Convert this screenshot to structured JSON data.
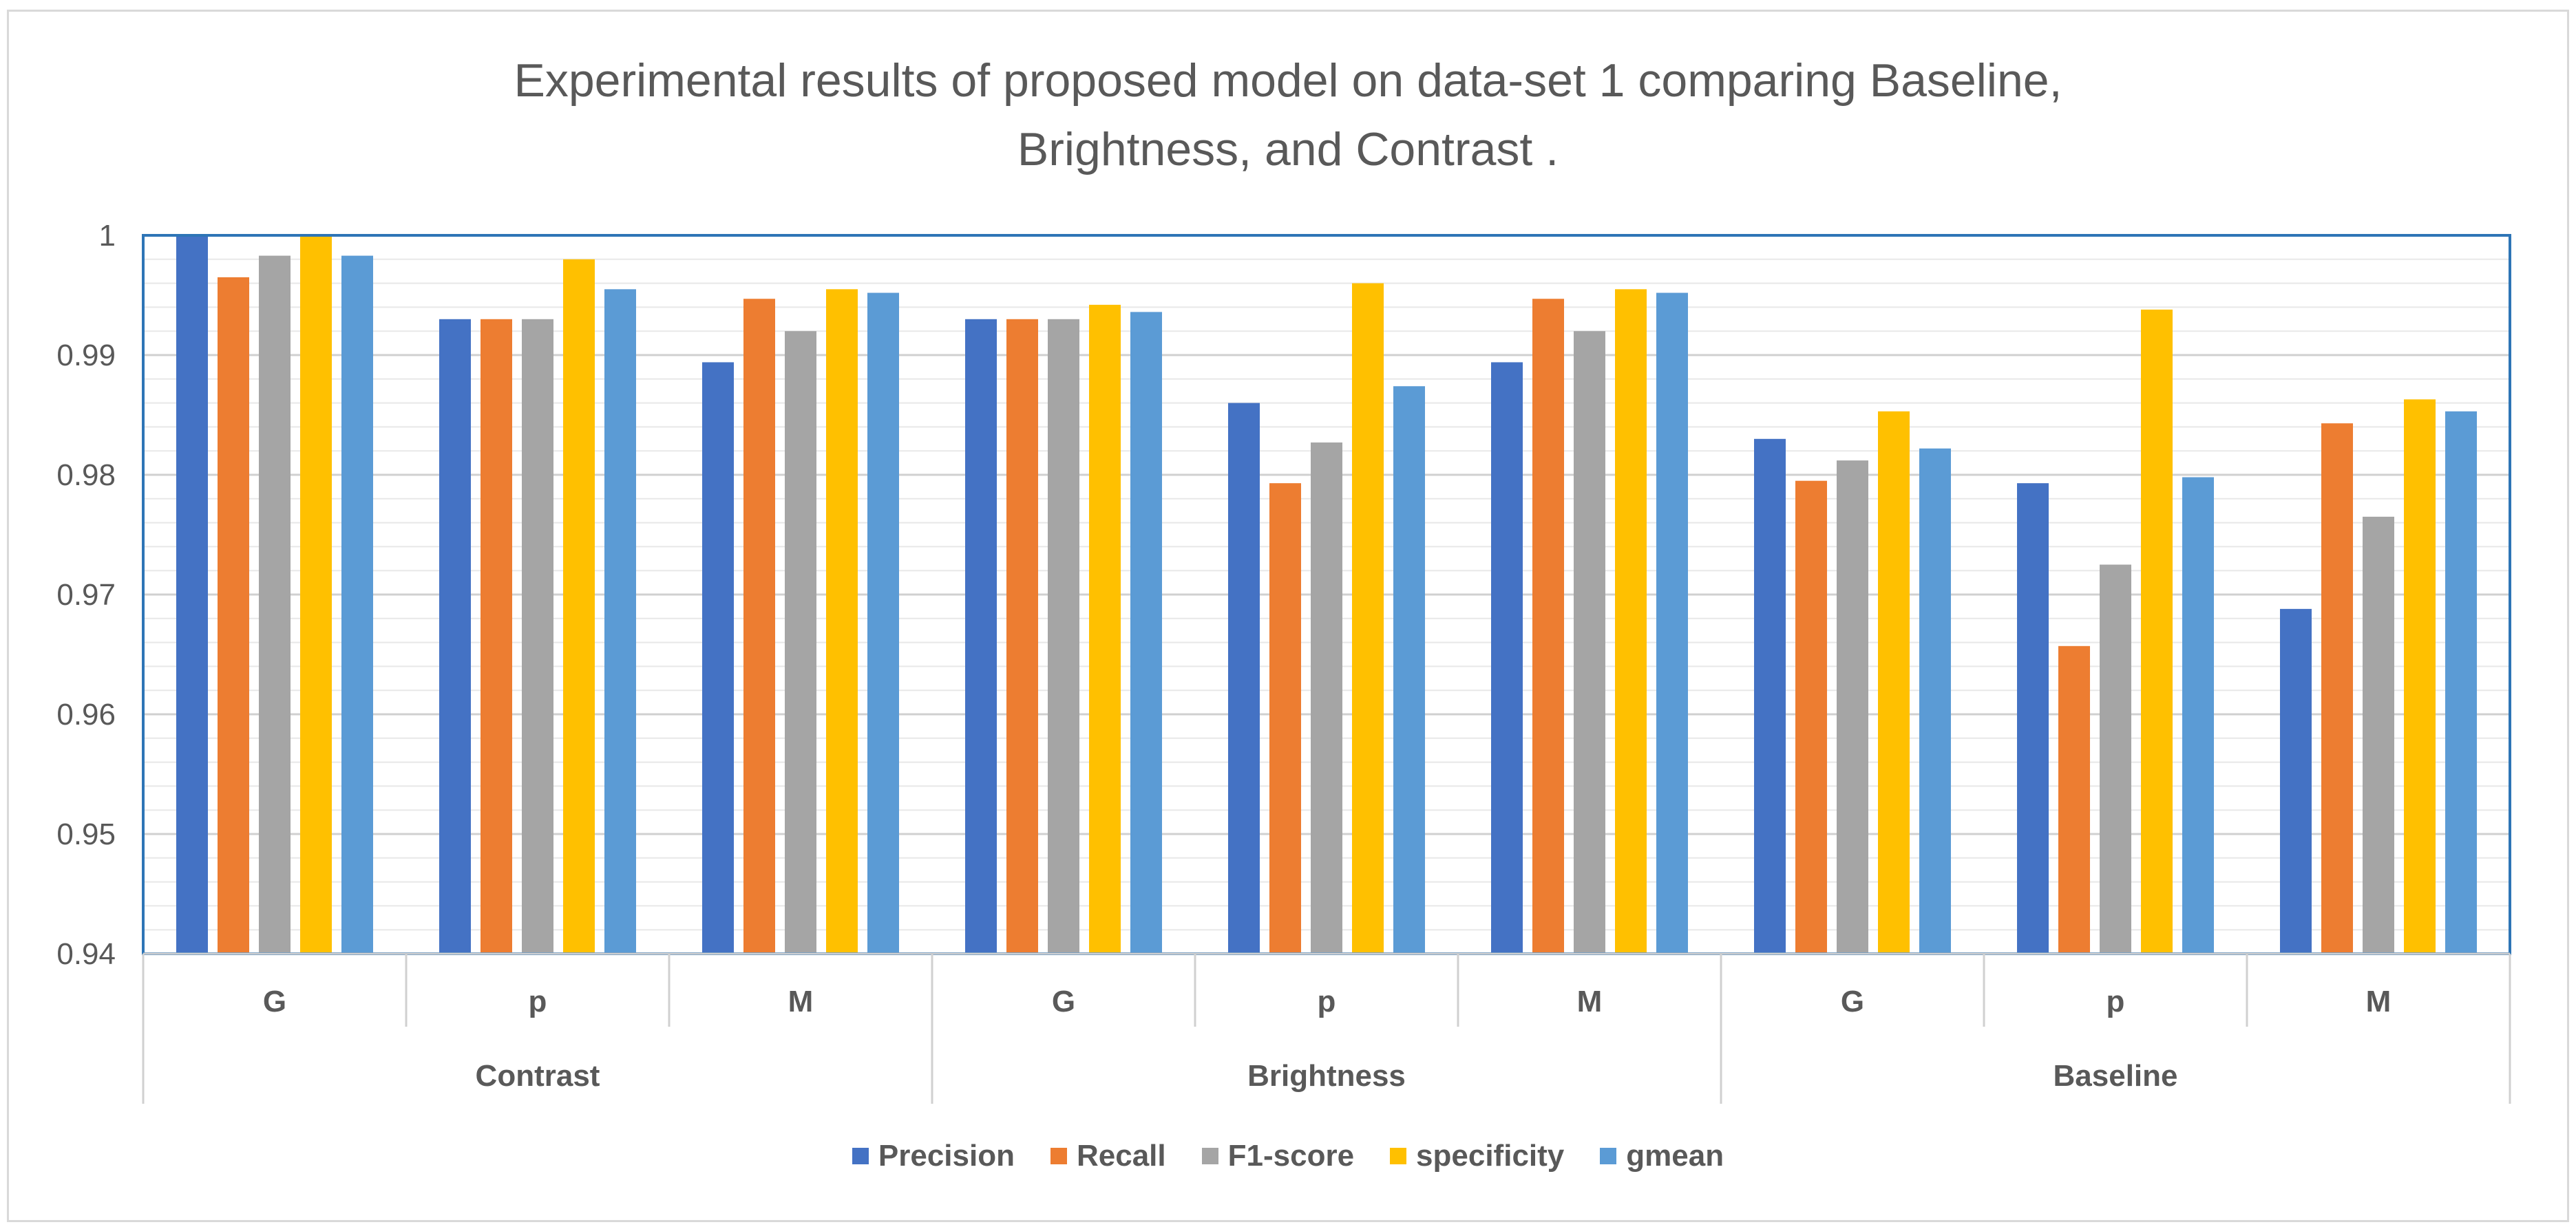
{
  "chart_data": {
    "type": "bar",
    "title_lines": [
      "Experimental results of proposed model on data-set 1 comparing Baseline,",
      "Brightness, and Contrast ."
    ],
    "groups": [
      {
        "name": "Contrast",
        "categories": [
          "G",
          "p",
          "M"
        ]
      },
      {
        "name": "Brightness",
        "categories": [
          "G",
          "p",
          "M"
        ]
      },
      {
        "name": "Baseline",
        "categories": [
          "G",
          "p",
          "M"
        ]
      }
    ],
    "series": [
      {
        "name": "Precision",
        "color": "#4472c4",
        "values": [
          1.0,
          0.993,
          0.9894,
          0.993,
          0.986,
          0.9894,
          0.983,
          0.9793,
          0.9688
        ]
      },
      {
        "name": "Recall",
        "color": "#ed7d31",
        "values": [
          0.9965,
          0.993,
          0.9947,
          0.993,
          0.9793,
          0.9947,
          0.9795,
          0.9657,
          0.9843
        ]
      },
      {
        "name": "F1-score",
        "color": "#a5a5a5",
        "values": [
          0.9983,
          0.993,
          0.992,
          0.993,
          0.9827,
          0.992,
          0.9812,
          0.9725,
          0.9765
        ]
      },
      {
        "name": "specificity",
        "color": "#ffc000",
        "values": [
          1.0,
          0.998,
          0.9955,
          0.9942,
          0.996,
          0.9955,
          0.9853,
          0.9938,
          0.9863
        ]
      },
      {
        "name": "gmean",
        "color": "#5b9bd5",
        "values": [
          0.9983,
          0.9955,
          0.9952,
          0.9936,
          0.9874,
          0.9952,
          0.9822,
          0.9798,
          0.9853
        ]
      }
    ],
    "y_ticks": [
      "0.94",
      "0.95",
      "0.96",
      "0.97",
      "0.98",
      "0.99",
      "1"
    ],
    "ylim": [
      0.94,
      1.0
    ],
    "y_minor_step": 0.002,
    "grid": true,
    "legend_position": "bottom",
    "xlabel": "",
    "ylabel": ""
  }
}
